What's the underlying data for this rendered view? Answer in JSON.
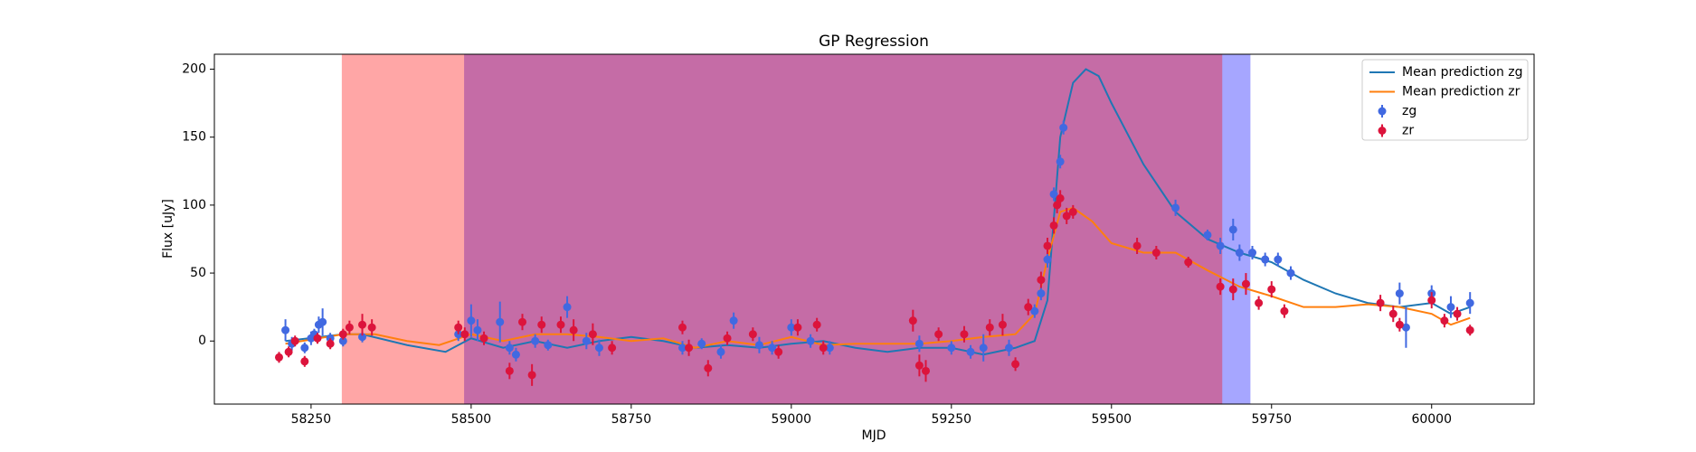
{
  "chart_data": {
    "type": "line",
    "title": "GP Regression",
    "xlabel": "MJD",
    "ylabel": "Flux [uJy]",
    "xlim": [
      58099,
      60160
    ],
    "ylim": [
      -46.4,
      211
    ],
    "xticks": [
      58250,
      58500,
      58750,
      59000,
      59250,
      59500,
      59750,
      60000
    ],
    "yticks": [
      0,
      50,
      100,
      150,
      200
    ],
    "grid": false,
    "legend": "upper right",
    "spans": [
      {
        "start": 58489,
        "end": 59717,
        "color": "#0000ff",
        "alpha": 0.35
      },
      {
        "start": 58298,
        "end": 59673,
        "color": "#ff0000",
        "alpha": 0.35
      }
    ],
    "series": [
      {
        "name": "Mean prediction zg",
        "type": "line",
        "color": "#1f77b4",
        "x": [
          58210,
          58300,
          58330,
          58400,
          58460,
          58500,
          58550,
          58600,
          58650,
          58700,
          58750,
          58800,
          58850,
          58900,
          58950,
          59000,
          59050,
          59100,
          59150,
          59200,
          59250,
          59300,
          59350,
          59380,
          59400,
          59420,
          59440,
          59460,
          59480,
          59500,
          59550,
          59600,
          59650,
          59700,
          59750,
          59800,
          59850,
          59900,
          59950,
          60000,
          60030,
          60060
        ],
        "values": [
          0,
          5,
          5,
          -3,
          -8,
          2,
          -5,
          0,
          -5,
          0,
          3,
          0,
          -5,
          -3,
          -5,
          -2,
          0,
          -5,
          -8,
          -5,
          -5,
          -10,
          -5,
          0,
          30,
          150,
          190,
          200,
          195,
          175,
          130,
          95,
          75,
          65,
          58,
          45,
          35,
          28,
          25,
          28,
          20,
          25
        ]
      },
      {
        "name": "Mean prediction zr",
        "type": "line",
        "color": "#ff7f0e",
        "x": [
          58210,
          58300,
          58350,
          58400,
          58450,
          58500,
          58550,
          58600,
          58650,
          58700,
          58750,
          58800,
          58850,
          58900,
          58950,
          59000,
          59050,
          59100,
          59150,
          59200,
          59250,
          59300,
          59350,
          59380,
          59400,
          59420,
          59440,
          59470,
          59500,
          59550,
          59600,
          59650,
          59700,
          59750,
          59800,
          59850,
          59900,
          59950,
          60000,
          60030,
          60060
        ],
        "values": [
          -2,
          5,
          5,
          0,
          -3,
          5,
          0,
          5,
          5,
          3,
          0,
          2,
          -5,
          0,
          -3,
          3,
          -3,
          -2,
          -2,
          -2,
          0,
          3,
          5,
          20,
          60,
          95,
          98,
          88,
          72,
          65,
          65,
          52,
          40,
          33,
          25,
          25,
          27,
          25,
          20,
          12,
          17
        ]
      },
      {
        "name": "zg",
        "type": "errorbar",
        "color": "#4169e1",
        "x": [
          58210,
          58220,
          58240,
          58250,
          58255,
          58262,
          58268,
          58280,
          58300,
          58330,
          58480,
          58500,
          58510,
          58545,
          58560,
          58570,
          58600,
          58620,
          58650,
          58680,
          58700,
          58830,
          58860,
          58890,
          58910,
          58950,
          58970,
          59000,
          59030,
          59060,
          59200,
          59250,
          59280,
          59300,
          59340,
          59380,
          59390,
          59400,
          59410,
          59420,
          59425,
          59600,
          59650,
          59670,
          59690,
          59700,
          59720,
          59740,
          59760,
          59780,
          59950,
          59960,
          60000,
          60030,
          60060
        ],
        "values": [
          8,
          -2,
          -5,
          2,
          5,
          12,
          14,
          2,
          0,
          3,
          5,
          15,
          8,
          14,
          -5,
          -10,
          0,
          -3,
          25,
          0,
          -5,
          -5,
          -2,
          -8,
          15,
          -3,
          -5,
          10,
          0,
          -5,
          -2,
          -5,
          -8,
          -5,
          -5,
          22,
          35,
          60,
          108,
          132,
          157,
          98,
          78,
          70,
          82,
          65,
          65,
          60,
          60,
          50,
          35,
          10,
          35,
          25,
          28
        ],
        "errors": [
          8,
          5,
          4,
          5,
          4,
          6,
          10,
          4,
          4,
          4,
          5,
          12,
          8,
          15,
          5,
          5,
          5,
          4,
          8,
          6,
          6,
          5,
          4,
          5,
          6,
          6,
          5,
          6,
          5,
          5,
          6,
          5,
          5,
          10,
          6,
          5,
          5,
          6,
          5,
          5,
          5,
          6,
          4,
          6,
          8,
          6,
          5,
          5,
          5,
          5,
          8,
          15,
          6,
          8,
          8
        ]
      },
      {
        "name": "zr",
        "type": "errorbar",
        "color": "#dc143c",
        "x": [
          58200,
          58215,
          58225,
          58240,
          58260,
          58280,
          58300,
          58310,
          58330,
          58345,
          58480,
          58490,
          58520,
          58560,
          58580,
          58595,
          58610,
          58640,
          58660,
          58690,
          58720,
          58830,
          58840,
          58870,
          58900,
          58940,
          58980,
          59010,
          59040,
          59050,
          59190,
          59200,
          59210,
          59230,
          59270,
          59310,
          59330,
          59350,
          59370,
          59390,
          59400,
          59410,
          59415,
          59420,
          59430,
          59440,
          59540,
          59570,
          59620,
          59670,
          59690,
          59710,
          59730,
          59750,
          59770,
          59920,
          59940,
          59950,
          60000,
          60020,
          60040,
          60060
        ],
        "values": [
          -12,
          -8,
          0,
          -15,
          2,
          -2,
          5,
          10,
          12,
          10,
          10,
          5,
          2,
          -22,
          14,
          -25,
          12,
          12,
          8,
          5,
          -5,
          10,
          -5,
          -20,
          2,
          5,
          -8,
          10,
          12,
          -5,
          15,
          -18,
          -22,
          5,
          5,
          10,
          12,
          -17,
          25,
          45,
          70,
          85,
          100,
          105,
          92,
          95,
          70,
          65,
          58,
          40,
          38,
          42,
          28,
          38,
          22,
          28,
          20,
          12,
          30,
          15,
          20,
          8
        ],
        "errors": [
          4,
          4,
          4,
          4,
          4,
          4,
          4,
          5,
          8,
          6,
          5,
          5,
          5,
          6,
          6,
          8,
          6,
          6,
          8,
          8,
          5,
          5,
          6,
          6,
          5,
          5,
          5,
          6,
          5,
          5,
          8,
          8,
          8,
          5,
          6,
          6,
          8,
          5,
          6,
          6,
          6,
          6,
          6,
          6,
          6,
          5,
          6,
          5,
          4,
          6,
          8,
          8,
          5,
          6,
          5,
          6,
          6,
          5,
          6,
          5,
          5,
          4
        ]
      }
    ]
  }
}
